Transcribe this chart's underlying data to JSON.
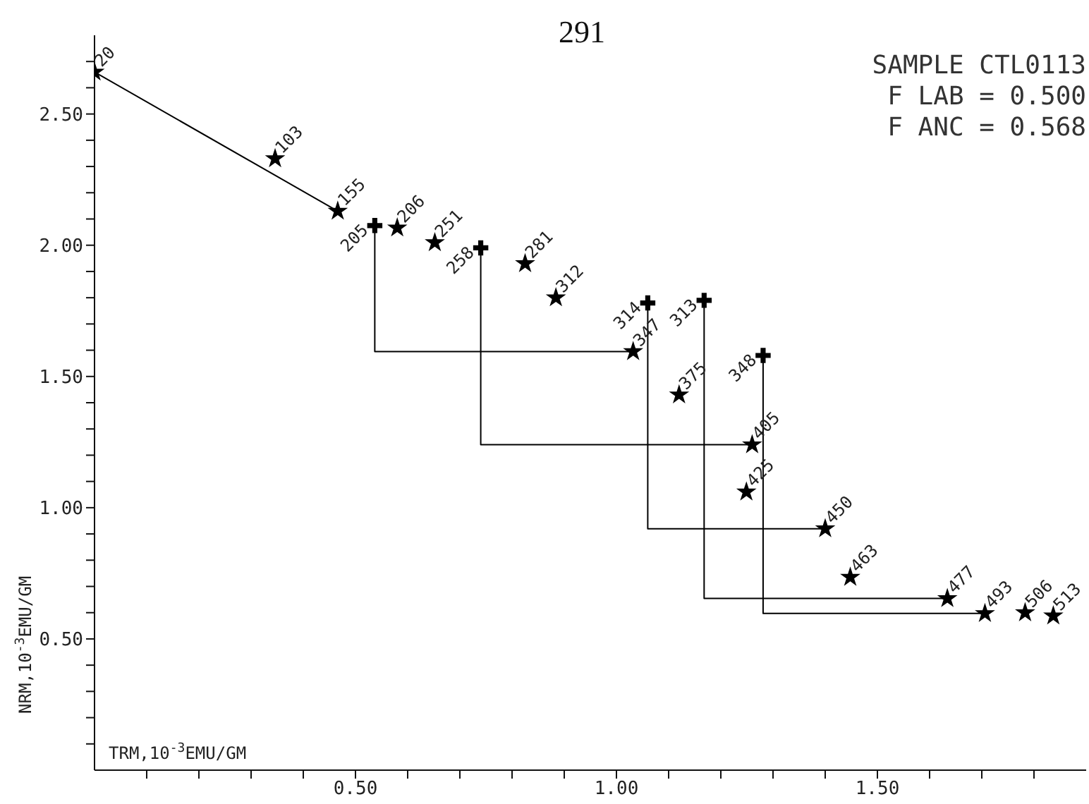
{
  "chart_data": {
    "type": "scatter",
    "xlabel": "TRM,10$^{-3}$EMU/GM",
    "ylabel": "NRM,10$^{-3}$EMU/GM",
    "annotations": [
      "291",
      "SAMPLE CTL0113",
      "F LAB = 0.500",
      "F ANC = 0.568",
      {
        "text": "20",
        "x": 0,
        "y": 2.66
      },
      {
        "text": "103",
        "x": 0.346,
        "y": 2.33
      },
      {
        "text": "155",
        "x": 0.466,
        "y": 2.13
      },
      {
        "text": "206",
        "x": 0.58,
        "y": 2.066
      },
      {
        "text": "251",
        "x": 0.652,
        "y": 2.01
      },
      {
        "text": "281",
        "x": 0.825,
        "y": 1.93
      },
      {
        "text": "312",
        "x": 0.884,
        "y": 1.8
      },
      {
        "text": "347",
        "x": 1.032,
        "y": 1.595
      },
      {
        "text": "375",
        "x": 1.12,
        "y": 1.43
      },
      {
        "text": "405",
        "x": 1.26,
        "y": 1.24
      },
      {
        "text": "425",
        "x": 1.249,
        "y": 1.06
      },
      {
        "text": "450",
        "x": 1.4,
        "y": 0.92
      },
      {
        "text": "463",
        "x": 1.448,
        "y": 0.735
      },
      {
        "text": "477",
        "x": 1.634,
        "y": 0.654
      },
      {
        "text": "493",
        "x": 1.706,
        "y": 0.597
      },
      {
        "text": "506",
        "x": 1.783,
        "y": 0.6
      },
      {
        "text": "513",
        "x": 1.837,
        "y": 0.588
      },
      {
        "text": "205",
        "x": 0.537,
        "y": 2.075
      },
      {
        "text": "258",
        "x": 0.74,
        "y": 1.99
      },
      {
        "text": "314",
        "x": 1.06,
        "y": 1.78
      },
      {
        "text": "313",
        "x": 1.168,
        "y": 1.79
      },
      {
        "text": "348",
        "x": 1.281,
        "y": 1.58
      }
    ],
    "xlim": [
      0,
      1.9
    ],
    "ylim": [
      0,
      2.8
    ],
    "xticks": [
      {
        "value": 0.1,
        "label": null
      },
      {
        "value": 0.2,
        "label": null
      },
      {
        "value": 0.3,
        "label": null
      },
      {
        "value": 0.4,
        "label": null
      },
      {
        "value": 0.5,
        "label": "0.50"
      },
      {
        "value": 0.6,
        "label": null
      },
      {
        "value": 0.7,
        "label": null
      },
      {
        "value": 0.8,
        "label": null
      },
      {
        "value": 0.9,
        "label": null
      },
      {
        "value": 1.0,
        "label": "1.00"
      },
      {
        "value": 1.1,
        "label": null
      },
      {
        "value": 1.2,
        "label": null
      },
      {
        "value": 1.3,
        "label": null
      },
      {
        "value": 1.4,
        "label": null
      },
      {
        "value": 1.5,
        "label": "1.50"
      },
      {
        "value": 1.6,
        "label": null
      },
      {
        "value": 1.7,
        "label": null
      },
      {
        "value": 1.8,
        "label": null
      }
    ],
    "yticks": [
      {
        "value": 0.1,
        "label": null
      },
      {
        "value": 0.2,
        "label": null
      },
      {
        "value": 0.3,
        "label": null
      },
      {
        "value": 0.4,
        "label": null
      },
      {
        "value": 0.5,
        "label": "0.50"
      },
      {
        "value": 0.6,
        "label": null
      },
      {
        "value": 0.7,
        "label": null
      },
      {
        "value": 0.8,
        "label": null
      },
      {
        "value": 0.9,
        "label": null
      },
      {
        "value": 1.0,
        "label": "1.00"
      },
      {
        "value": 1.1,
        "label": null
      },
      {
        "value": 1.2,
        "label": null
      },
      {
        "value": 1.3,
        "label": null
      },
      {
        "value": 1.4,
        "label": null
      },
      {
        "value": 1.5,
        "label": "1.50"
      },
      {
        "value": 1.6,
        "label": null
      },
      {
        "value": 1.7,
        "label": null
      },
      {
        "value": 1.8,
        "label": null
      },
      {
        "value": 1.9,
        "label": null
      },
      {
        "value": 2.0,
        "label": "2.00"
      },
      {
        "value": 2.1,
        "label": null
      },
      {
        "value": 2.2,
        "label": null
      },
      {
        "value": 2.3,
        "label": null
      },
      {
        "value": 2.4,
        "label": null
      },
      {
        "value": 2.5,
        "label": "2.50"
      },
      {
        "value": 2.6,
        "label": null
      },
      {
        "value": 2.7,
        "label": null
      }
    ],
    "series": [
      {
        "type": "line",
        "marker": "none",
        "color": "#000000",
        "x": [
          0,
          0.466
        ],
        "values": [
          2.66,
          2.13
        ]
      },
      {
        "type": "line",
        "marker": "none",
        "color": "#000000",
        "x": [
          0.537,
          0.537,
          1.032
        ],
        "values": [
          2.075,
          1.595,
          1.595
        ]
      },
      {
        "type": "line",
        "marker": "none",
        "color": "#000000",
        "x": [
          0.74,
          0.74,
          1.26
        ],
        "values": [
          1.99,
          1.24,
          1.24
        ]
      },
      {
        "type": "line",
        "marker": "none",
        "color": "#000000",
        "x": [
          1.06,
          1.06,
          1.4
        ],
        "values": [
          1.78,
          0.92,
          0.92
        ]
      },
      {
        "type": "line",
        "marker": "none",
        "color": "#000000",
        "x": [
          1.168,
          1.168,
          1.634
        ],
        "values": [
          1.79,
          0.654,
          0.654
        ]
      },
      {
        "type": "line",
        "marker": "none",
        "color": "#000000",
        "x": [
          1.281,
          1.281,
          1.706
        ],
        "values": [
          1.58,
          0.597,
          0.597
        ]
      },
      {
        "marker": "star",
        "color": "#000000",
        "x": [
          0,
          0.346,
          0.466,
          0.58,
          0.652,
          0.825,
          0.884,
          1.032,
          1.12,
          1.26,
          1.249,
          1.4,
          1.448,
          1.634,
          1.706,
          1.783,
          1.837
        ],
        "values": [
          2.66,
          2.33,
          2.13,
          2.066,
          2.01,
          1.93,
          1.8,
          1.595,
          1.43,
          1.24,
          1.06,
          0.92,
          0.735,
          0.654,
          0.597,
          0.6,
          0.588
        ]
      },
      {
        "marker": "cross",
        "color": "#000000",
        "x": [
          0.537,
          0.74,
          1.06,
          1.168,
          1.281
        ],
        "values": [
          2.075,
          1.99,
          1.78,
          1.79,
          1.58
        ]
      }
    ]
  }
}
